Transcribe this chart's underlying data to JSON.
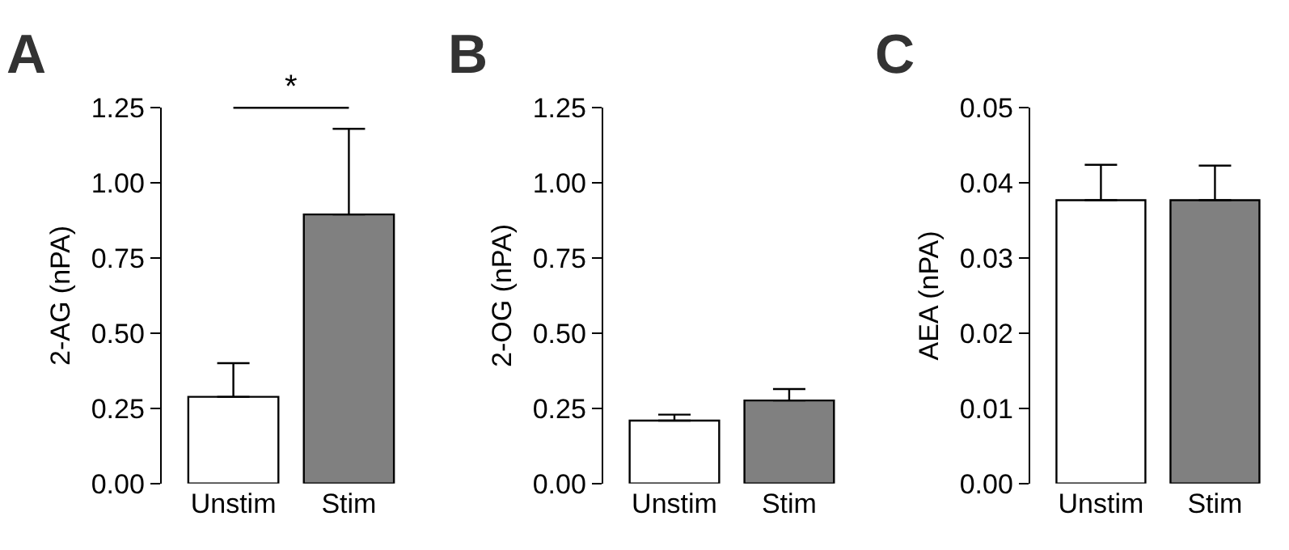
{
  "chart_data": [
    {
      "type": "bar",
      "title": "A",
      "ylabel": "2-AG (nPA)",
      "categories": [
        "Unstim",
        "Stim"
      ],
      "values": [
        0.288,
        0.895
      ],
      "colors": [
        "#ffffff",
        "#808080"
      ],
      "errors": [
        [
          0.288,
          0.4
        ],
        [
          0.895,
          1.18
        ]
      ],
      "ylim": [
        0,
        1.25
      ],
      "yticks": [
        {
          "value": 0,
          "label": "0.00"
        },
        0.25,
        {
          "value": 0.5,
          "label": "0.50"
        },
        0.75,
        {
          "value": 1,
          "label": "1.00"
        },
        1.25
      ],
      "annotations": [
        "*"
      ]
    },
    {
      "type": "bar",
      "title": "B",
      "ylabel": "2-OG (nPA)",
      "categories": [
        "Unstim",
        "Stim"
      ],
      "values": [
        0.209,
        0.276
      ],
      "colors": [
        "#ffffff",
        "#808080"
      ],
      "errors": [
        [
          0.209,
          0.229
        ],
        [
          0.276,
          0.314
        ]
      ],
      "ylim": [
        0,
        1.25
      ],
      "yticks": [
        {
          "value": 0,
          "label": "0.00"
        },
        0.25,
        {
          "value": 0.5,
          "label": "0.50"
        },
        0.75,
        {
          "value": 1,
          "label": "1.00"
        },
        1.25
      ]
    },
    {
      "type": "bar",
      "title": "C",
      "ylabel": "AEA (nPA)",
      "categories": [
        "Unstim",
        "Stim"
      ],
      "values": [
        0.0377,
        0.0377
      ],
      "colors": [
        "#ffffff",
        "#808080"
      ],
      "errors": [
        [
          0.0377,
          0.0424
        ],
        [
          0.0377,
          0.0423
        ]
      ],
      "ylim": [
        0,
        0.05
      ],
      "yticks": [
        {
          "value": 0,
          "label": "0.00"
        },
        0.01,
        0.02,
        0.03,
        0.04,
        0.05
      ]
    }
  ]
}
